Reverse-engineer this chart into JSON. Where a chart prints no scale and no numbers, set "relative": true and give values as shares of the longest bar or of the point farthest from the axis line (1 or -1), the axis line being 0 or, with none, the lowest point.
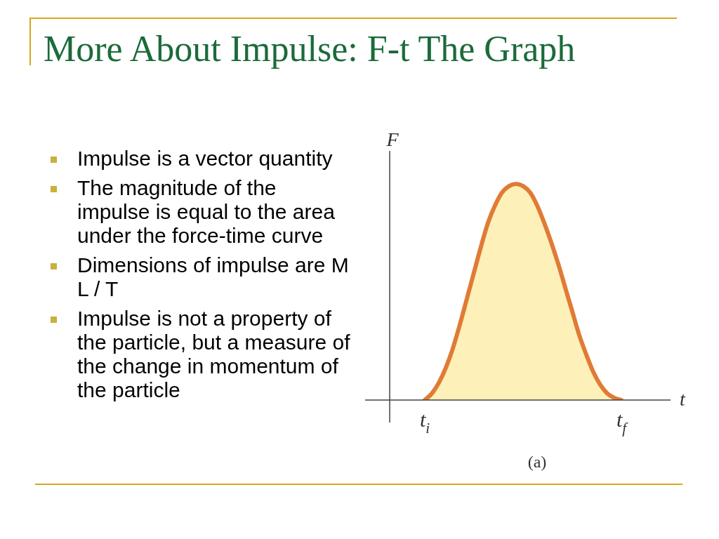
{
  "chart_data": {
    "type": "area",
    "title": "More About Impulse: F-t The Graph",
    "xlabel": "t",
    "ylabel": "F",
    "relative": true,
    "categories": [
      null,
      null,
      null,
      null,
      null,
      "t$_{i}$",
      null,
      null,
      null,
      null,
      null,
      null,
      null,
      null,
      null,
      null,
      null,
      null,
      null,
      null,
      null,
      null,
      null,
      null,
      null,
      null,
      null,
      null,
      null,
      null,
      null,
      null,
      null,
      "t$_{f}$",
      null,
      null,
      null,
      null,
      null,
      null,
      null
    ],
    "series": [
      {
        "color": "#e07b35",
        "values": [
          null,
          null,
          null,
          null,
          null,
          0,
          0.03,
          0.08,
          0.15,
          0.24,
          0.35,
          0.47,
          0.59,
          0.71,
          0.82,
          0.9,
          0.96,
          0.99,
          1,
          0.99,
          0.96,
          0.9,
          0.82,
          0.73,
          0.63,
          0.52,
          0.41,
          0.3,
          0.21,
          0.13,
          0.07,
          0.03,
          0.01,
          0,
          null,
          null,
          null,
          null,
          null,
          null,
          null
        ]
      }
    ],
    "annotations": [
      "Impulse is a vector quantity",
      "The magnitude of the impulse is equal to the area under the force-time curve",
      "Dimensions of impulse are M L / T",
      "Impulse is not a property of the particle, but a measure of the change in momentum of the particle",
      "(a)"
    ],
    "marker": "none"
  }
}
